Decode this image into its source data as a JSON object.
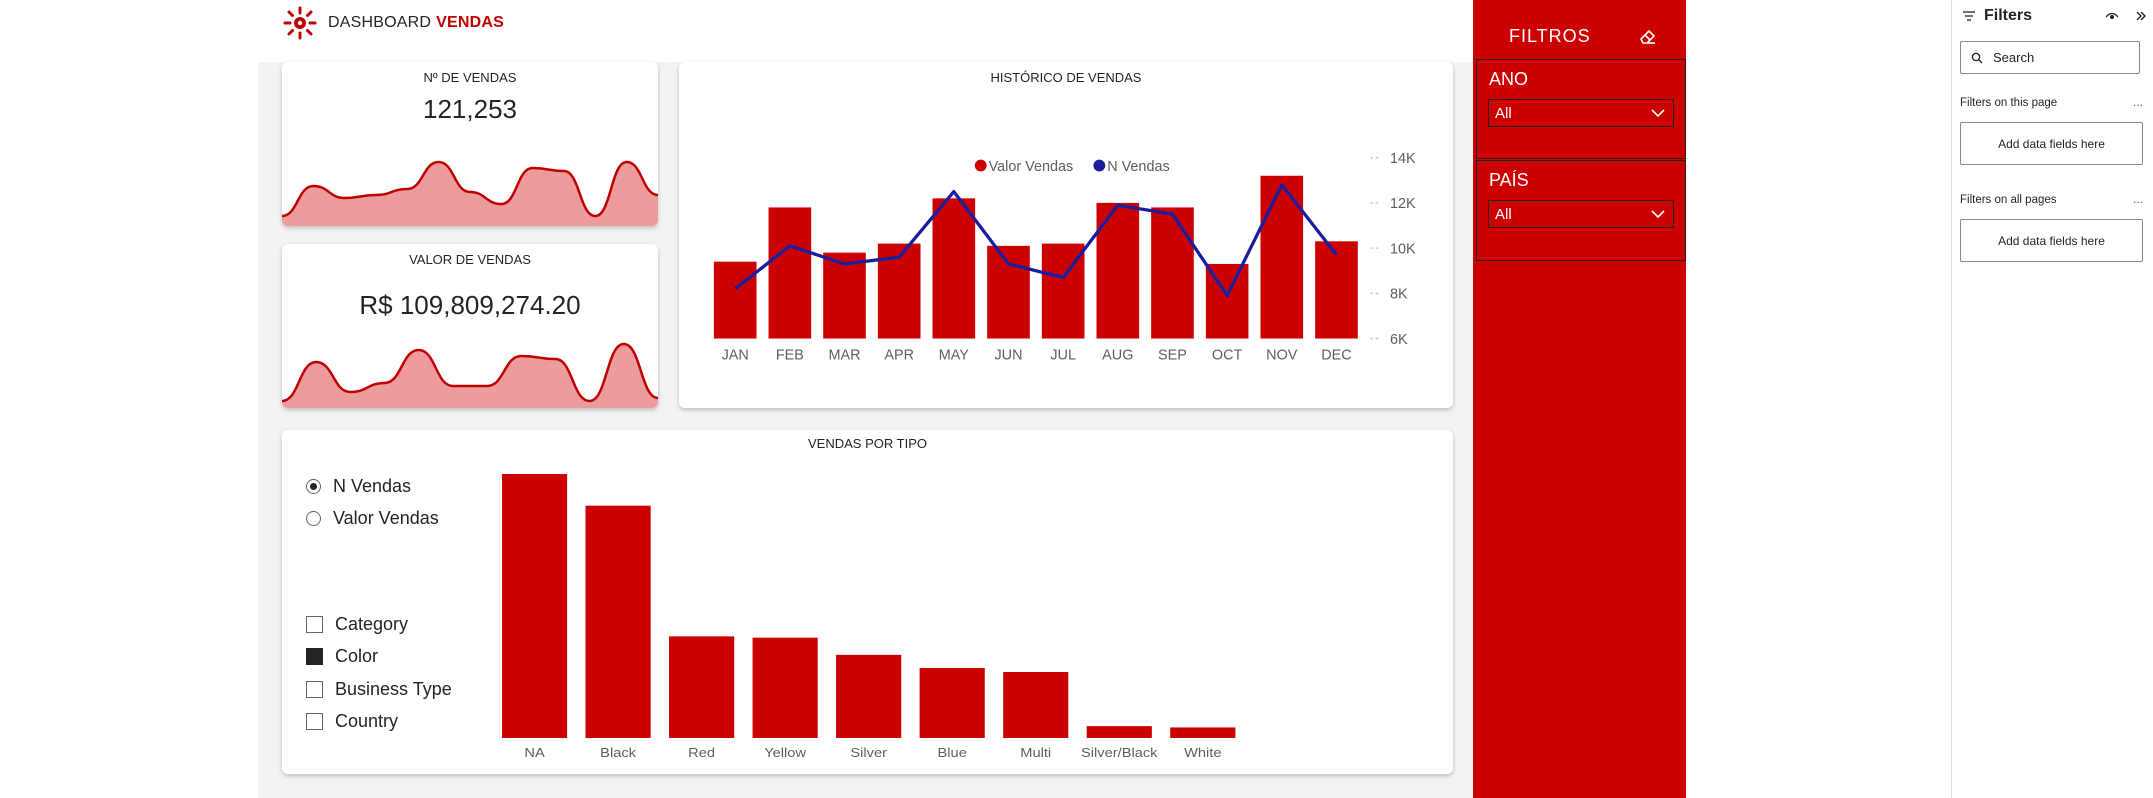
{
  "header": {
    "title_prefix": "DASHBOARD",
    "title_accent": "VENDAS",
    "logo_icon": "gear-sun-logo-icon",
    "accent_color": "#c00000"
  },
  "kpis": {
    "n_vendas": {
      "title": "Nº DE VENDAS",
      "value": "121,253",
      "sparkline": [
        0.1,
        0.6,
        0.4,
        0.45,
        0.55,
        1.0,
        0.5,
        0.3,
        0.9,
        0.85,
        0.1,
        1.0,
        0.45
      ]
    },
    "valor_vendas": {
      "title": "VALOR DE VENDAS",
      "value": "R$ 109,809,274.20",
      "sparkline": [
        0.05,
        0.7,
        0.2,
        0.35,
        0.9,
        0.3,
        0.3,
        0.8,
        0.75,
        0.05,
        1.0,
        0.1
      ]
    }
  },
  "historico": {
    "title": "HISTÓRICO DE VENDAS",
    "legend": [
      {
        "label": "Valor Vendas",
        "color": "#cc0000"
      },
      {
        "label": "N Vendas",
        "color": "#1b1e9c"
      }
    ]
  },
  "chart_data": [
    {
      "type": "bar",
      "title": "HISTÓRICO DE VENDAS",
      "categories": [
        "JAN",
        "FEB",
        "MAR",
        "APR",
        "MAY",
        "JUN",
        "JUL",
        "AUG",
        "SEP",
        "OCT",
        "NOV",
        "DEC"
      ],
      "series": [
        {
          "name": "Valor Vendas",
          "type": "bar",
          "values": [
            9.4,
            11.8,
            9.8,
            10.2,
            12.2,
            10.1,
            10.2,
            12.0,
            11.8,
            9.3,
            13.2,
            10.3
          ]
        },
        {
          "name": "N Vendas",
          "type": "line",
          "values": [
            8.2,
            10.1,
            9.3,
            9.6,
            12.5,
            9.3,
            8.7,
            11.9,
            11.5,
            7.9,
            12.8,
            9.7
          ]
        }
      ],
      "y_ticks": [
        "6K",
        "8K",
        "10K",
        "12K",
        "14K"
      ],
      "ylim": [
        6,
        14
      ],
      "legend_position": "top-center",
      "grid": false
    },
    {
      "type": "bar",
      "title": "VENDAS POR TIPO",
      "categories": [
        "NA",
        "Black",
        "Red",
        "Yellow",
        "Silver",
        "Blue",
        "Multi",
        "Silver/Black",
        "White"
      ],
      "values": [
        100,
        88,
        38.5,
        38,
        31.5,
        26.5,
        25,
        4.5,
        4
      ],
      "ylim": [
        0,
        100
      ],
      "grid": false
    }
  ],
  "vendas_tipo": {
    "title": "VENDAS POR TIPO",
    "measures": [
      {
        "label": "N Vendas",
        "selected": true
      },
      {
        "label": "Valor Vendas",
        "selected": false
      }
    ],
    "dimensions": [
      {
        "label": "Category",
        "checked": false
      },
      {
        "label": "Color",
        "checked": true
      },
      {
        "label": "Business Type",
        "checked": false
      },
      {
        "label": "Country",
        "checked": false
      }
    ]
  },
  "filtros": {
    "title": "FILTROS",
    "clear_icon": "eraser-icon",
    "ano": {
      "label": "ANO",
      "value": "All"
    },
    "pais": {
      "label": "PAÍS",
      "value": "All"
    }
  },
  "filters_pane": {
    "title": "Filters",
    "search_placeholder": "Search",
    "on_this_page": "Filters on this page",
    "on_all_pages": "Filters on all pages",
    "more": "...",
    "add_fields": "Add data fields here"
  }
}
